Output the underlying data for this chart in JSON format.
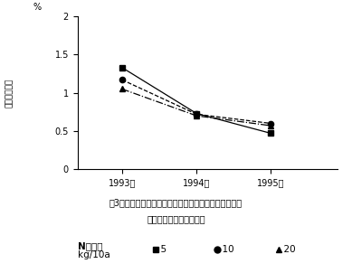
{
  "years": [
    1993,
    1994,
    1995
  ],
  "series": [
    {
      "label": "5",
      "values": [
        1.33,
        0.73,
        0.47
      ],
      "marker": "s",
      "linestyle": "-",
      "color": "#000000"
    },
    {
      "label": "10",
      "values": [
        1.17,
        0.72,
        0.6
      ],
      "marker": "o",
      "linestyle": "--",
      "color": "#000000"
    },
    {
      "label": "20",
      "values": [
        1.05,
        0.7,
        0.57
      ],
      "marker": "^",
      "linestyle": "-.",
      "color": "#000000"
    }
  ],
  "ylabel_kanji": "山底構成割合",
  "ylabel_unit": "%",
  "ylim": [
    0,
    2.0
  ],
  "yticks": [
    0,
    0.5,
    1.0,
    1.5,
    2.0
  ],
  "ytick_labels": [
    "0",
    "0.5",
    "1",
    "1.5",
    "2"
  ],
  "xtick_labels": [
    "1993年",
    "1994年",
    "1995年"
  ],
  "caption_line1": "図3．オーチャードグラス草地における施肥量の違いと",
  "caption_line2": "シバムギ構成割合の推移",
  "legend_pre_title": "N施肥量",
  "legend_pre_title2": "kg/10a",
  "legend_labels": [
    "5",
    "10",
    "20"
  ],
  "background_color": "#ffffff",
  "caption_fontsize": 7,
  "axis_fontsize": 7,
  "legend_fontsize": 7.5
}
